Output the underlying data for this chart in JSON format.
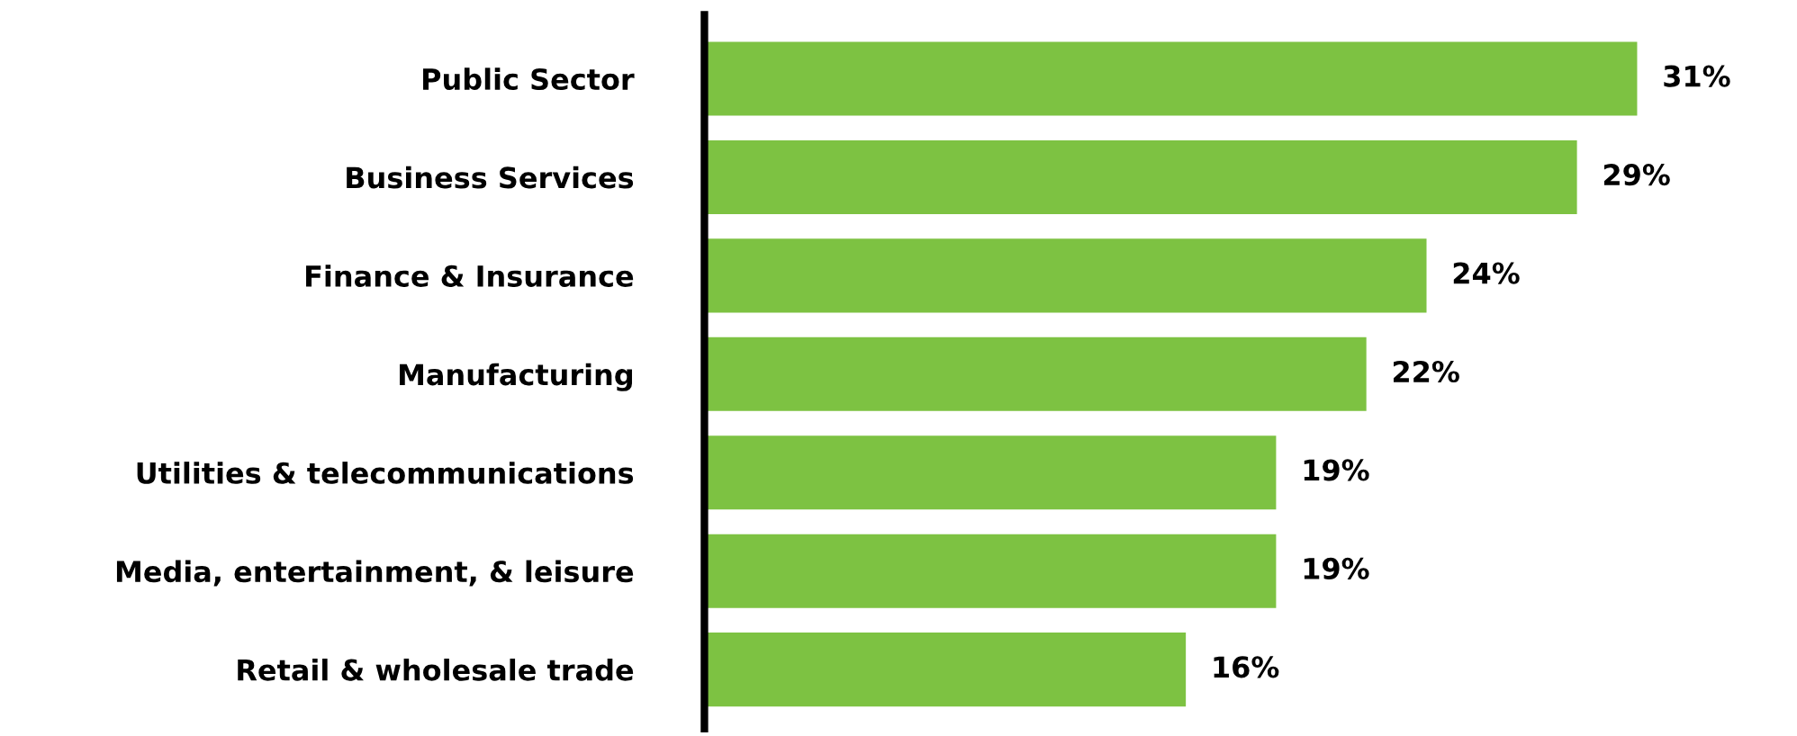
{
  "chart_data": {
    "type": "bar",
    "orientation": "horizontal",
    "categories": [
      "Public Sector",
      "Business Services",
      "Finance & Insurance",
      "Manufacturing",
      "Utilities & telecommunications",
      "Media, entertainment, & leisure",
      "Retail & wholesale trade"
    ],
    "values": [
      31,
      29,
      24,
      22,
      19,
      19,
      16
    ],
    "value_labels": [
      "31%",
      "29%",
      "24%",
      "22%",
      "19%",
      "19%",
      "16%"
    ],
    "color": "#7dc242",
    "grid": false,
    "legend": false,
    "tick_labels": "y"
  }
}
